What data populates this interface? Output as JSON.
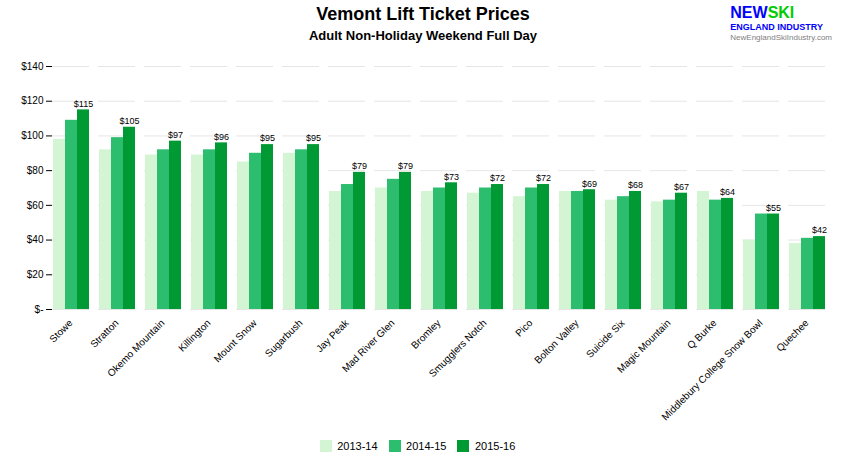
{
  "chart_data": {
    "type": "bar",
    "title": "Vemont Lift Ticket Prices",
    "subtitle": "Adult Non-Holiday Weekend Full Day",
    "categories": [
      "Stowe",
      "Stratton",
      "Okemo Mountain",
      "Killington",
      "Mount Snow",
      "Sugarbush",
      "Jay Peak",
      "Mad River Glen",
      "Bromley",
      "Smugglers Notch",
      "Pico",
      "Bolton Valley",
      "Suicide Six",
      "Magic Mountain",
      "Q Burke",
      "Middlebury College Snow Bowl",
      "Quechee"
    ],
    "series": [
      {
        "name": "2013-14",
        "color": "#d4f5d4",
        "values": [
          98,
          92,
          89,
          89,
          85,
          90,
          68,
          70,
          68,
          67,
          65,
          68,
          63,
          62,
          68,
          40,
          38
        ]
      },
      {
        "name": "2014-15",
        "color": "#2dbd6e",
        "values": [
          109,
          99,
          92,
          92,
          90,
          92,
          72,
          75,
          70,
          70,
          70,
          68,
          65,
          63,
          63,
          55,
          41
        ]
      },
      {
        "name": "2015-16",
        "color": "#009933",
        "values": [
          115,
          105,
          97,
          96,
          95,
          95,
          79,
          79,
          73,
          72,
          72,
          69,
          68,
          67,
          64,
          55,
          42
        ],
        "value_labels": [
          "$115",
          "$105",
          "$97",
          "$96",
          "$95",
          "$95",
          "$79",
          "$79",
          "$73",
          "$72",
          "$72",
          "$69",
          "$68",
          "$67",
          "$64",
          "$55",
          "$42"
        ]
      }
    ],
    "ylim": [
      0,
      140
    ],
    "yticks": [
      {
        "value": 0,
        "label": "$-"
      },
      {
        "value": 20,
        "label": "$20"
      },
      {
        "value": 40,
        "label": "$40"
      },
      {
        "value": 60,
        "label": "$60"
      },
      {
        "value": 80,
        "label": "$80"
      },
      {
        "value": 100,
        "label": "$100"
      },
      {
        "value": 120,
        "label": "$120"
      },
      {
        "value": 140,
        "label": "$140"
      }
    ],
    "grid": true,
    "legend": "bottom",
    "annotations": [
      {
        "text": "NEW",
        "color": "blue"
      },
      {
        "text": "SKI",
        "color": "#00cc00"
      },
      {
        "text": "ENGLAND INDUSTRY",
        "color": "blue"
      },
      {
        "text": "NewEnglandSkiIndustry.com",
        "color": "gray"
      }
    ]
  }
}
